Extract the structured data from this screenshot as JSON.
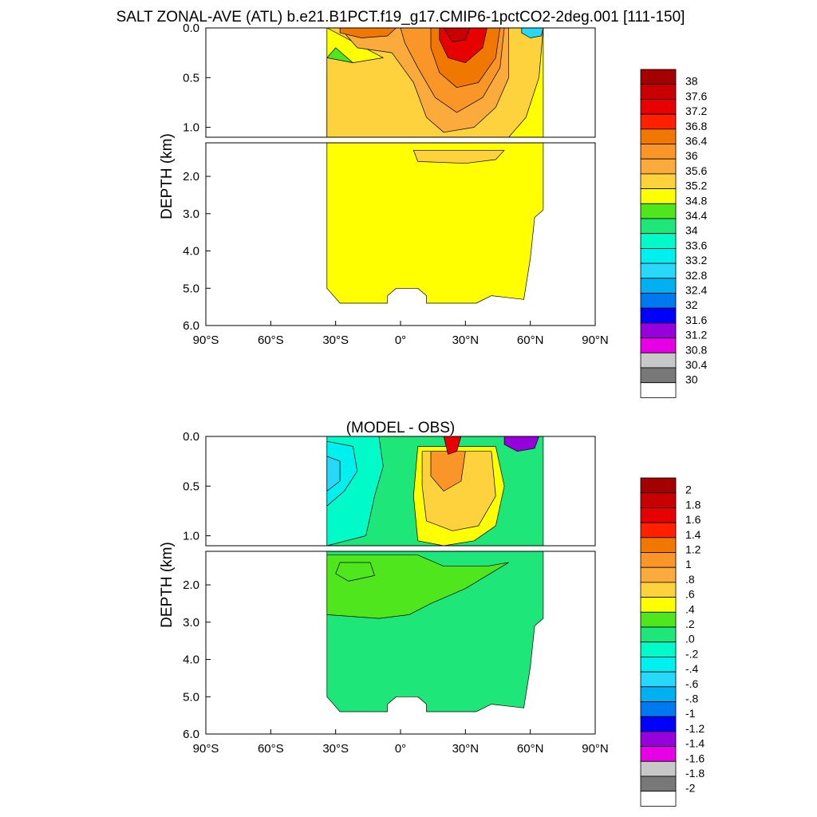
{
  "figure": {
    "title": "SALT ZONAL-AVE (ATL) b.e21.B1PCT.f19_g17.CMIP6-1pctCO2-2deg.001 [111-150]"
  },
  "chart_data": [
    {
      "type": "heatmap",
      "title": "SALT ZONAL-AVE (ATL) b.e21.B1PCT.f19_g17.CMIP6-1pctCO2-2deg.001 [111-150]",
      "xlabel": "",
      "ylabel": "DEPTH (km)",
      "x_ticks": [
        "90°S",
        "60°S",
        "30°S",
        "0°",
        "30°N",
        "60°N",
        "90°N"
      ],
      "y_ticks_upper": [
        "0.0",
        "0.5",
        "1.0"
      ],
      "y_ticks_lower": [
        "2.0",
        "3.0",
        "4.0",
        "5.0",
        "6.0"
      ],
      "xlim": [
        -90,
        90
      ],
      "ylim_km": [
        0,
        6
      ],
      "colorbar_labels": [
        "38",
        "37.6",
        "37.2",
        "36.8",
        "36.4",
        "36",
        "35.6",
        "35.2",
        "34.8",
        "34.4",
        "34",
        "33.6",
        "33.2",
        "32.8",
        "32.4",
        "32",
        "31.6",
        "31.2",
        "30.8",
        "30.4",
        "30"
      ],
      "colors": [
        "#a50000",
        "#c80000",
        "#e60000",
        "#ff2000",
        "#f07800",
        "#fa9628",
        "#fbaa3c",
        "#fdd23c",
        "#ffff00",
        "#50e61e",
        "#1ee678",
        "#00fac8",
        "#00f0f0",
        "#28d8f8",
        "#00b0f0",
        "#0078f0",
        "#0000ff",
        "#9600dc",
        "#e600e6",
        "#c8c8c8",
        "#787878",
        "#ffffff"
      ],
      "regions": [
        {
          "name": "background-fill",
          "level": 35.0
        },
        {
          "name": "southern-band",
          "level": 34.6
        },
        {
          "name": "low-salinity-core",
          "level": 34.6
        },
        {
          "name": "subtropical-north",
          "level": 35.4
        },
        {
          "name": "deep-intermediate-north",
          "level": 35.4
        },
        {
          "name": "salinity-max-ring1",
          "level": 35.8
        },
        {
          "name": "salinity-max-ring2",
          "level": 36.2
        },
        {
          "name": "salinity-max-ring3",
          "level": 36.6
        },
        {
          "name": "salinity-max-core",
          "level": 37.4
        },
        {
          "name": "salinity-max-peak",
          "level": 37.8
        },
        {
          "name": "south-surface-max",
          "level": 36.6
        },
        {
          "name": "arctic-fresh",
          "level": 33.0
        }
      ]
    },
    {
      "type": "heatmap",
      "title": "(MODEL - OBS)",
      "xlabel": "",
      "ylabel": "DEPTH (km)",
      "x_ticks": [
        "90°S",
        "60°S",
        "30°S",
        "0°",
        "30°N",
        "60°N",
        "90°N"
      ],
      "y_ticks_upper": [
        "0.0",
        "0.5",
        "1.0"
      ],
      "y_ticks_lower": [
        "2.0",
        "3.0",
        "4.0",
        "5.0",
        "6.0"
      ],
      "xlim": [
        -90,
        90
      ],
      "ylim_km": [
        0,
        6
      ],
      "colorbar_labels": [
        "2",
        "1.8",
        "1.6",
        "1.4",
        "1.2",
        "1",
        ".8",
        ".6",
        ".4",
        ".2",
        ".0",
        "-.2",
        "-.4",
        "-.6",
        "-.8",
        "-1",
        "-1.2",
        "-1.4",
        "-1.6",
        "-1.8",
        "-2"
      ],
      "colors": [
        "#a50000",
        "#c80000",
        "#e60000",
        "#ff2000",
        "#f07800",
        "#fa9628",
        "#fbaa3c",
        "#fdd23c",
        "#ffff00",
        "#50e61e",
        "#1ee678",
        "#00fac8",
        "#00f0f0",
        "#28d8f8",
        "#00b0f0",
        "#0078f0",
        "#0000ff",
        "#9600dc",
        "#e600e6",
        "#c8c8c8",
        "#787878",
        "#ffffff"
      ],
      "regions": [
        {
          "name": "background-fill",
          "level": 0.1
        },
        {
          "name": "positive-band",
          "level": 0.3
        },
        {
          "name": "negative-south",
          "level": -0.1
        },
        {
          "name": "negative-south-core",
          "level": -0.3
        },
        {
          "name": "negative-south-core2",
          "level": -0.5
        },
        {
          "name": "positive-north",
          "level": 0.5
        },
        {
          "name": "positive-north2",
          "level": 0.7
        },
        {
          "name": "positive-north3",
          "level": 1.1
        },
        {
          "name": "positive-north-peak",
          "level": 1.7
        },
        {
          "name": "deep-positive-patch",
          "level": 0.3
        },
        {
          "name": "arctic-negative",
          "level": -1.3
        }
      ]
    }
  ]
}
